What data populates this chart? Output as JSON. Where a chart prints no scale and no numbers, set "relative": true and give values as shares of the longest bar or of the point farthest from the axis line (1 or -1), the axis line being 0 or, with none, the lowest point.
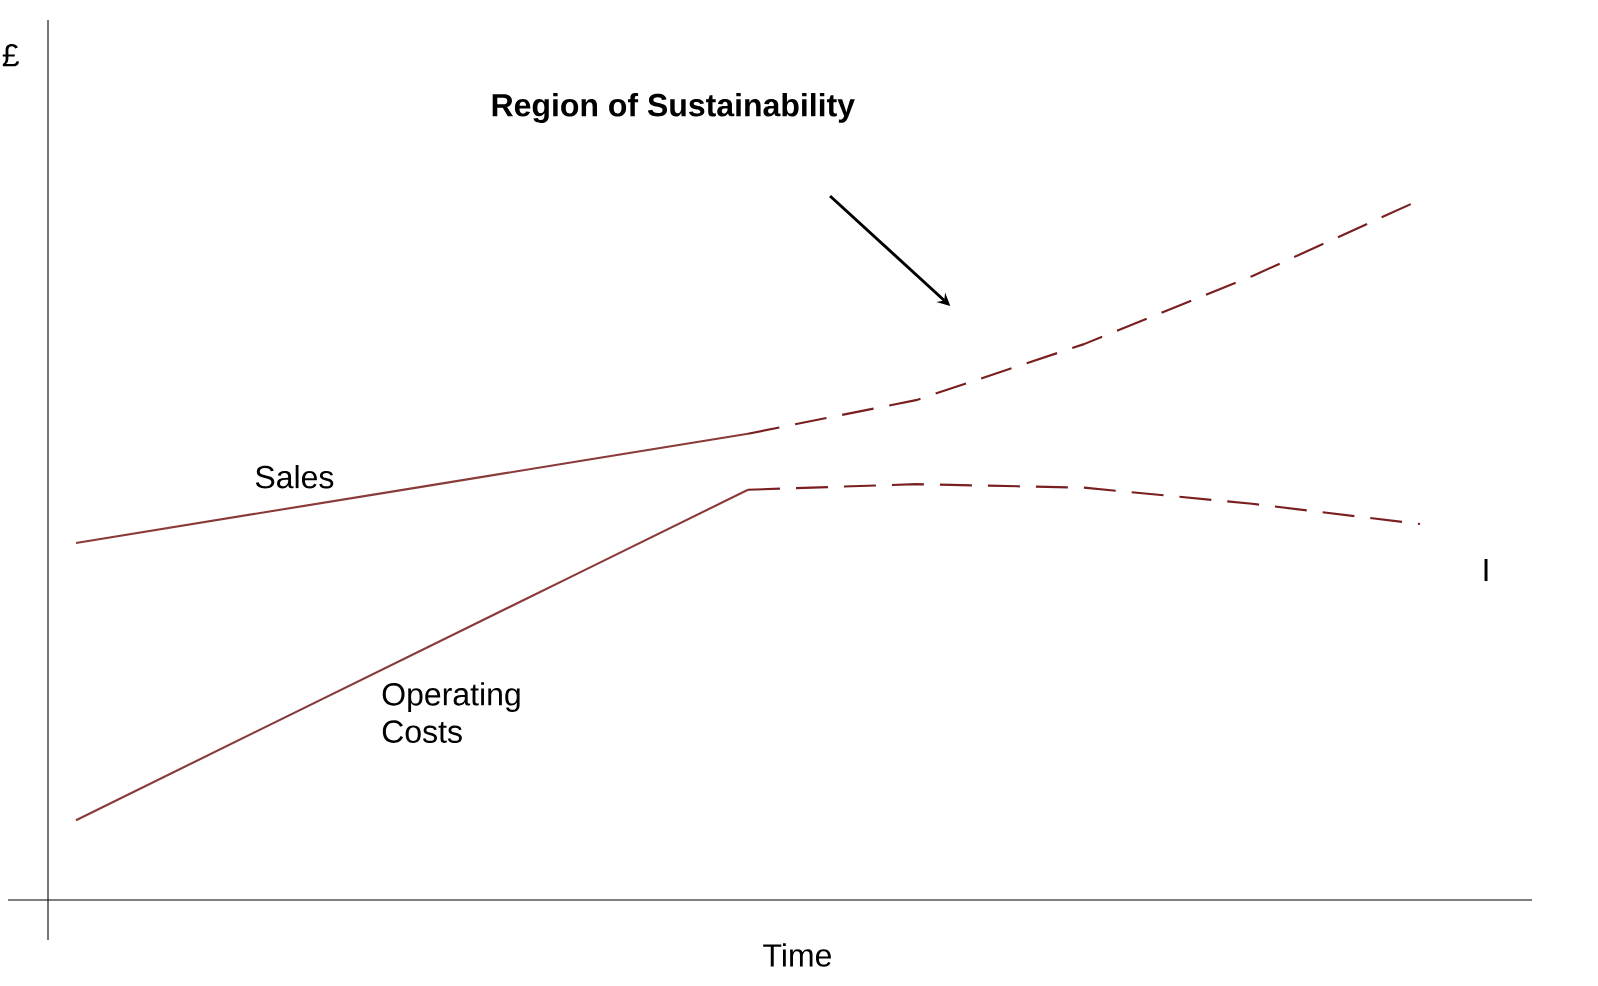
{
  "chart_data": {
    "type": "line",
    "relative": true,
    "xlabel": "Time",
    "ylabel": "£",
    "categories": [
      null,
      null,
      null,
      null,
      null,
      null,
      null,
      null,
      null
    ],
    "series": [
      {
        "name": "Sales",
        "color": "#8b3a3a",
        "line_style": "solid",
        "values": [
          0.51,
          0.549,
          0.588,
          0.627,
          0.666,
          null,
          null,
          null,
          null
        ]
      },
      {
        "color": "#7a1f1f",
        "line_style": "dashed",
        "values": [
          null,
          null,
          null,
          null,
          0.666,
          0.714,
          0.794,
          0.891,
          1.0
        ]
      },
      {
        "name": "Operating Costs",
        "color": "#8b3a3a",
        "line_style": "solid",
        "values": [
          0.114,
          0.232,
          0.35,
          0.468,
          0.586,
          null,
          null,
          null,
          null
        ]
      },
      {
        "color": "#7a1f1f",
        "line_style": "dashed",
        "values": [
          null,
          null,
          null,
          null,
          0.586,
          0.594,
          0.589,
          0.566,
          0.537
        ]
      }
    ],
    "annotations": [
      "Region of Sustainability",
      "I"
    ]
  }
}
